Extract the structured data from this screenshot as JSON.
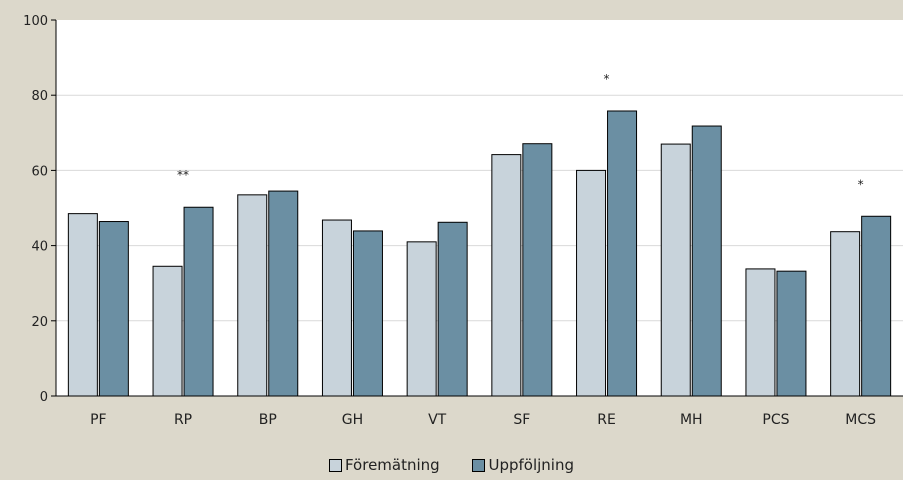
{
  "chart_data": {
    "type": "bar",
    "categories": [
      "PF",
      "RP",
      "BP",
      "GH",
      "VT",
      "SF",
      "RE",
      "MH",
      "PCS",
      "MCS"
    ],
    "series": [
      {
        "name": "Föremätning",
        "values": [
          48.5,
          34.5,
          53.5,
          46.8,
          41.0,
          64.2,
          60.0,
          67.0,
          33.8,
          43.7
        ],
        "color": "#c8d3db"
      },
      {
        "name": "Uppföljning",
        "values": [
          46.4,
          50.2,
          54.5,
          43.9,
          46.2,
          67.1,
          75.8,
          71.8,
          33.2,
          47.8
        ],
        "color": "#6b8fa3"
      }
    ],
    "annotations": [
      {
        "category": "RP",
        "text": "**"
      },
      {
        "category": "RE",
        "text": "*"
      },
      {
        "category": "MCS",
        "text": "*"
      }
    ],
    "ylim": [
      0,
      100
    ],
    "yticks": [
      0,
      20,
      40,
      60,
      80,
      100
    ],
    "grid": true,
    "legend_position": "bottom",
    "background": "#dcd8cb",
    "plot_background": "#ffffff"
  }
}
